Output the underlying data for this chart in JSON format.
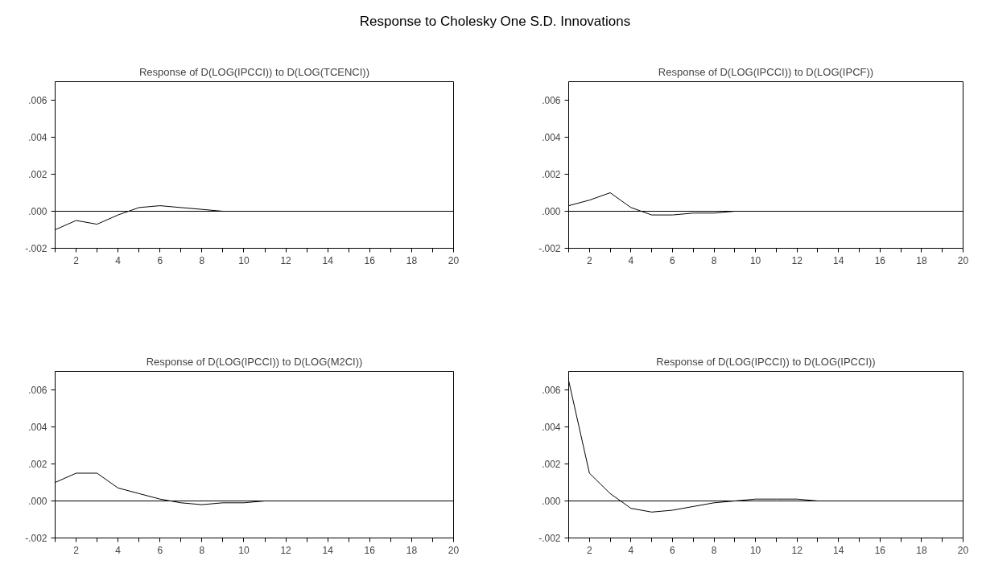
{
  "chart_data": [
    {
      "type": "other",
      "title": "Response to Cholesky One S.D. Innovations"
    },
    {
      "type": "line",
      "title": "Response of D(LOG(IPCCI)) to D(LOG(TCENCI))",
      "x": [
        1,
        2,
        3,
        4,
        5,
        6,
        7,
        8,
        9,
        10,
        11,
        12,
        13,
        14,
        15,
        16,
        17,
        18,
        19,
        20
      ],
      "series": [
        {
          "color": "#000000",
          "values": [
            -0.001,
            -0.0005,
            -0.0007,
            -0.0002,
            0.0002,
            0.0003,
            0.0002,
            0.0001,
            0,
            0,
            0,
            0,
            0,
            0,
            0,
            0,
            0,
            0,
            0,
            0
          ]
        }
      ],
      "xlim": [
        1,
        20
      ],
      "ylim": [
        -0.002,
        0.007
      ],
      "xticks": [
        {
          "value": 1,
          "label": null
        },
        2,
        {
          "value": 3,
          "label": null
        },
        4,
        {
          "value": 5,
          "label": null
        },
        6,
        {
          "value": 7,
          "label": null
        },
        8,
        {
          "value": 9,
          "label": null
        },
        10,
        {
          "value": 11,
          "label": null
        },
        12,
        {
          "value": 13,
          "label": null
        },
        14,
        {
          "value": 15,
          "label": null
        },
        16,
        {
          "value": 17,
          "label": null
        },
        18,
        {
          "value": 19,
          "label": null
        },
        20
      ],
      "yticks": [
        {
          "value": -0.002,
          "label": "-.002"
        },
        {
          "value": 0,
          "label": ".000"
        },
        {
          "value": 0.002,
          "label": ".002"
        },
        {
          "value": 0.004,
          "label": ".004"
        },
        {
          "value": 0.006,
          "label": ".006"
        }
      ],
      "ref_lines": [
        {
          "axis": "y",
          "value": 0,
          "color": "#000000"
        }
      ],
      "marker": "none",
      "line_style": "solid"
    },
    {
      "type": "line",
      "title": "Response of D(LOG(IPCCI)) to D(LOG(IPCF))",
      "x": [
        1,
        2,
        3,
        4,
        5,
        6,
        7,
        8,
        9,
        10,
        11,
        12,
        13,
        14,
        15,
        16,
        17,
        18,
        19,
        20
      ],
      "series": [
        {
          "color": "#000000",
          "values": [
            0.0003,
            0.0006,
            0.001,
            0.0002,
            -0.0002,
            -0.0002,
            -0.0001,
            -0.0001,
            0,
            0,
            0,
            0,
            0,
            0,
            0,
            0,
            0,
            0,
            0,
            0
          ]
        }
      ],
      "xlim": [
        1,
        20
      ],
      "ylim": [
        -0.002,
        0.007
      ],
      "xticks": [
        {
          "value": 1,
          "label": null
        },
        2,
        {
          "value": 3,
          "label": null
        },
        4,
        {
          "value": 5,
          "label": null
        },
        6,
        {
          "value": 7,
          "label": null
        },
        8,
        {
          "value": 9,
          "label": null
        },
        10,
        {
          "value": 11,
          "label": null
        },
        12,
        {
          "value": 13,
          "label": null
        },
        14,
        {
          "value": 15,
          "label": null
        },
        16,
        {
          "value": 17,
          "label": null
        },
        18,
        {
          "value": 19,
          "label": null
        },
        20
      ],
      "yticks": [
        {
          "value": -0.002,
          "label": "-.002"
        },
        {
          "value": 0,
          "label": ".000"
        },
        {
          "value": 0.002,
          "label": ".002"
        },
        {
          "value": 0.004,
          "label": ".004"
        },
        {
          "value": 0.006,
          "label": ".006"
        }
      ],
      "ref_lines": [
        {
          "axis": "y",
          "value": 0,
          "color": "#000000"
        }
      ],
      "marker": "none",
      "line_style": "solid"
    },
    {
      "type": "line",
      "title": "Response of D(LOG(IPCCI)) to D(LOG(M2CI))",
      "x": [
        1,
        2,
        3,
        4,
        5,
        6,
        7,
        8,
        9,
        10,
        11,
        12,
        13,
        14,
        15,
        16,
        17,
        18,
        19,
        20
      ],
      "series": [
        {
          "color": "#000000",
          "values": [
            0.001,
            0.0015,
            0.0015,
            0.0007,
            0.0004,
            0.0001,
            -0.0001,
            -0.0002,
            -0.0001,
            -0.0001,
            0,
            0,
            0,
            0,
            0,
            0,
            0,
            0,
            0,
            0
          ]
        }
      ],
      "xlim": [
        1,
        20
      ],
      "ylim": [
        -0.002,
        0.007
      ],
      "xticks": [
        {
          "value": 1,
          "label": null
        },
        2,
        {
          "value": 3,
          "label": null
        },
        4,
        {
          "value": 5,
          "label": null
        },
        6,
        {
          "value": 7,
          "label": null
        },
        8,
        {
          "value": 9,
          "label": null
        },
        10,
        {
          "value": 11,
          "label": null
        },
        12,
        {
          "value": 13,
          "label": null
        },
        14,
        {
          "value": 15,
          "label": null
        },
        16,
        {
          "value": 17,
          "label": null
        },
        18,
        {
          "value": 19,
          "label": null
        },
        20
      ],
      "yticks": [
        {
          "value": -0.002,
          "label": "-.002"
        },
        {
          "value": 0,
          "label": ".000"
        },
        {
          "value": 0.002,
          "label": ".002"
        },
        {
          "value": 0.004,
          "label": ".004"
        },
        {
          "value": 0.006,
          "label": ".006"
        }
      ],
      "ref_lines": [
        {
          "axis": "y",
          "value": 0,
          "color": "#000000"
        }
      ],
      "marker": "none",
      "line_style": "solid"
    },
    {
      "type": "line",
      "title": "Response of D(LOG(IPCCI)) to D(LOG(IPCCI))",
      "x": [
        1,
        2,
        3,
        4,
        5,
        6,
        7,
        8,
        9,
        10,
        11,
        12,
        13,
        14,
        15,
        16,
        17,
        18,
        19,
        20
      ],
      "series": [
        {
          "color": "#000000",
          "values": [
            0.0065,
            0.0015,
            0.0004,
            -0.0004,
            -0.0006,
            -0.0005,
            -0.0003,
            -0.0001,
            0,
            0.0001,
            0.0001,
            0.0001,
            0,
            0,
            0,
            0,
            0,
            0,
            0,
            0
          ]
        }
      ],
      "xlim": [
        1,
        20
      ],
      "ylim": [
        -0.002,
        0.007
      ],
      "xticks": [
        {
          "value": 1,
          "label": null
        },
        2,
        {
          "value": 3,
          "label": null
        },
        4,
        {
          "value": 5,
          "label": null
        },
        6,
        {
          "value": 7,
          "label": null
        },
        8,
        {
          "value": 9,
          "label": null
        },
        10,
        {
          "value": 11,
          "label": null
        },
        12,
        {
          "value": 13,
          "label": null
        },
        14,
        {
          "value": 15,
          "label": null
        },
        16,
        {
          "value": 17,
          "label": null
        },
        18,
        {
          "value": 19,
          "label": null
        },
        20
      ],
      "yticks": [
        {
          "value": -0.002,
          "label": "-.002"
        },
        {
          "value": 0,
          "label": ".000"
        },
        {
          "value": 0.002,
          "label": ".002"
        },
        {
          "value": 0.004,
          "label": ".004"
        },
        {
          "value": 0.006,
          "label": ".006"
        }
      ],
      "ref_lines": [
        {
          "axis": "y",
          "value": 0,
          "color": "#000000"
        }
      ],
      "marker": "none",
      "line_style": "solid"
    }
  ]
}
